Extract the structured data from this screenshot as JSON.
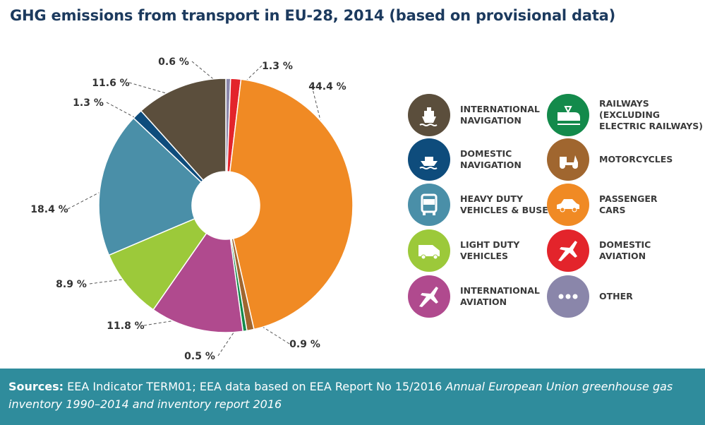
{
  "chart_data": {
    "type": "pie",
    "style": "donut",
    "title": "GHG emissions from transport in EU-28, 2014 (based on provisional data)",
    "unit": "%",
    "slices": [
      {
        "name": "OTHER",
        "value": 0.6,
        "label": "0.6 %",
        "color": "#8a86aa"
      },
      {
        "name": "DOMESTIC\nAVIATION",
        "value": 1.3,
        "label": "1.3 %",
        "color": "#e3242b"
      },
      {
        "name": "PASSENGER\nCARS",
        "value": 44.4,
        "label": "44.4 %",
        "color": "#f08a24"
      },
      {
        "name": "MOTORCYCLES",
        "value": 0.9,
        "label": "0.9 %",
        "color": "#a0662f"
      },
      {
        "name": "RAILWAYS\n(EXCLUDING\nELECTRIC RAILWAYS)",
        "value": 0.5,
        "label": "0.5 %",
        "color": "#138a4b"
      },
      {
        "name": "INTERNATIONAL\nAVIATION",
        "value": 11.8,
        "label": "11.8 %",
        "color": "#b04a8e"
      },
      {
        "name": "LIGHT DUTY\nVEHICLES",
        "value": 8.9,
        "label": "8.9 %",
        "color": "#9cc93a"
      },
      {
        "name": "HEAVY DUTY\nVEHICLES & BUSES",
        "value": 18.4,
        "label": "18.4 %",
        "color": "#4a8fa8"
      },
      {
        "name": "DOMESTIC\nNAVIGATION",
        "value": 1.3,
        "label": "1.3 %",
        "color": "#0e4c7c"
      },
      {
        "name": "INTERNATIONAL\nNAVIGATION",
        "value": 11.6,
        "label": "11.6 %",
        "color": "#5b4e3c"
      }
    ],
    "legend": [
      {
        "slice": 9,
        "icon": "ship-icon"
      },
      {
        "slice": 8,
        "icon": "boat-icon"
      },
      {
        "slice": 7,
        "icon": "bus-icon"
      },
      {
        "slice": 6,
        "icon": "van-icon"
      },
      {
        "slice": 5,
        "icon": "airplane-icon"
      },
      {
        "slice": 4,
        "icon": "train-icon"
      },
      {
        "slice": 3,
        "icon": "scooter-icon"
      },
      {
        "slice": 2,
        "icon": "car-icon"
      },
      {
        "slice": 1,
        "icon": "airplane-icon"
      },
      {
        "slice": 0,
        "icon": "dots-icon"
      }
    ],
    "legend_placement": "right"
  },
  "footer": {
    "sources_label": "Sources:",
    "sources_text": " EEA Indicator TERM01; EEA data based on EEA Report No 15/2016 ",
    "sources_italic": "Annual European Union greenhouse gas inventory 1990–2014 and inventory report 2016"
  }
}
